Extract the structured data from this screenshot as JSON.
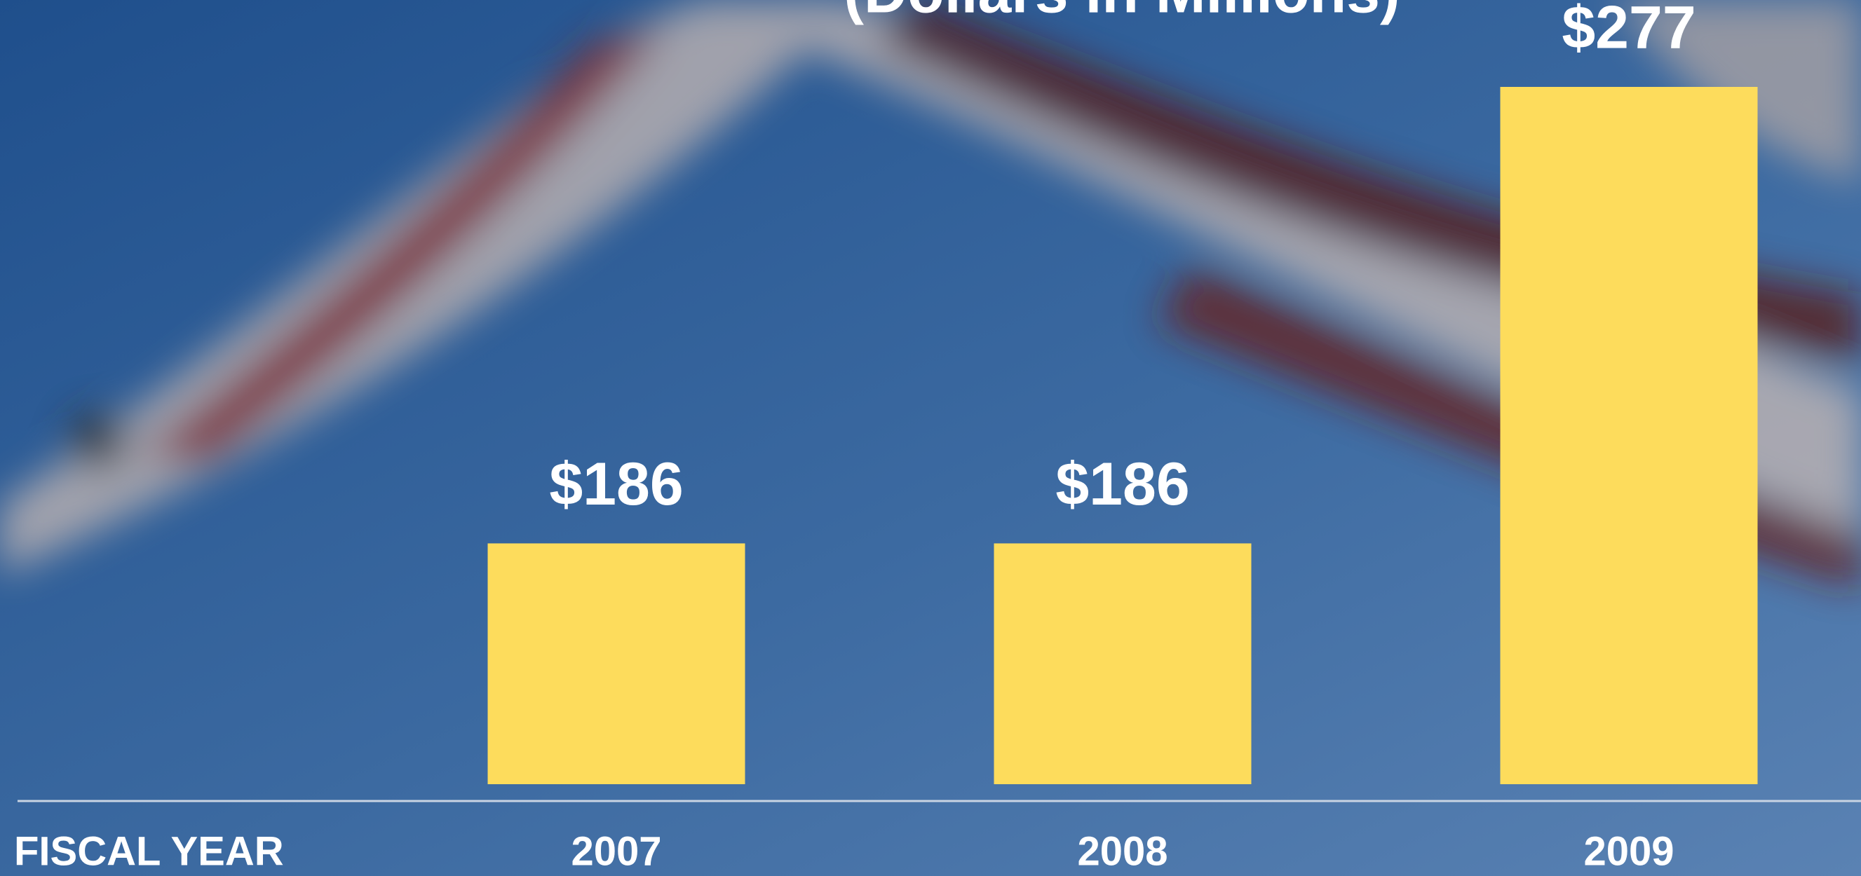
{
  "chart_data": {
    "type": "bar",
    "subtitle": "(Dollars in Millions)",
    "x_label": "FISCAL YEAR",
    "categories": [
      "2007",
      "2008",
      "2009"
    ],
    "values": [
      186,
      186,
      277
    ],
    "value_labels": [
      "$186",
      "$186",
      "$277"
    ],
    "color": "#fddc5c",
    "ylim": [
      138,
      277
    ]
  }
}
